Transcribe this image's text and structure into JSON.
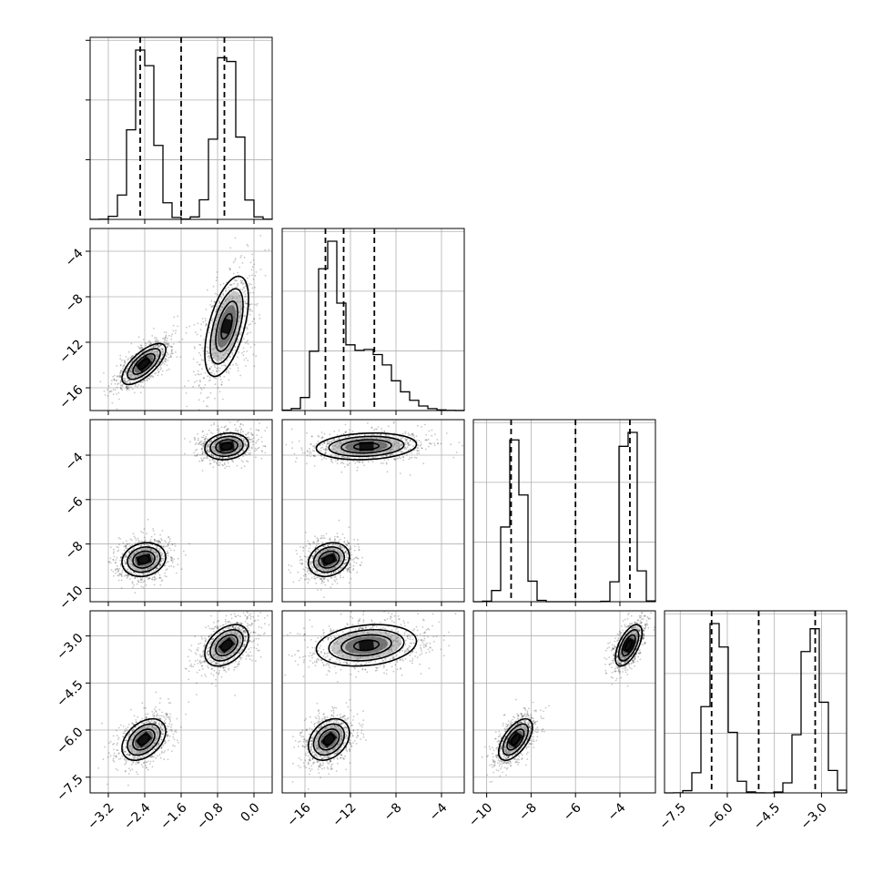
{
  "chart_data": {
    "type": "scatter",
    "kind": "corner-plot",
    "grid": true,
    "params": [
      {
        "range": [
          -3.6,
          0.4
        ],
        "ticks": [
          -3.2,
          -2.4,
          -1.6,
          -0.8,
          0.0
        ],
        "tick_labels": [
          "−3.2",
          "−2.4",
          "−1.6",
          "−0.8",
          "0.0"
        ],
        "modes": [
          {
            "mean": -2.42,
            "sd": 0.24,
            "w": 0.5
          },
          {
            "mean": -0.6,
            "sd": 0.24,
            "w": 0.5
          }
        ]
      },
      {
        "range": [
          -18.0,
          -2.0
        ],
        "ticks": [
          -16,
          -12,
          -8,
          -4
        ],
        "tick_labels": [
          "−16",
          "−12",
          "−8",
          "−4"
        ],
        "modes": [
          {
            "mean": -13.9,
            "sd": 0.9,
            "w": 0.5
          },
          {
            "mean": -10.6,
            "sd": 2.2,
            "w": 0.5
          }
        ]
      },
      {
        "range": [
          -10.6,
          -2.4
        ],
        "ticks": [
          -10,
          -8,
          -6,
          -4
        ],
        "tick_labels": [
          "−10",
          "−8",
          "−6",
          "−4"
        ],
        "modes": [
          {
            "mean": -8.7,
            "sd": 0.38,
            "w": 0.5
          },
          {
            "mean": -3.6,
            "sd": 0.3,
            "w": 0.5
          }
        ]
      },
      {
        "range": [
          -8.0,
          -2.2
        ],
        "ticks": [
          -7.5,
          -6.0,
          -4.5,
          -3.0
        ],
        "tick_labels": [
          "−7.5",
          "−6.0",
          "−4.5",
          "−3.0"
        ],
        "modes": [
          {
            "mean": -6.3,
            "sd": 0.33,
            "w": 0.5
          },
          {
            "mean": -3.3,
            "sd": 0.33,
            "w": 0.5
          }
        ]
      }
    ],
    "left_tick_labels": [
      null,
      {
        "ticks": [
          -16,
          -12,
          -8,
          -4
        ],
        "tick_labels": [
          "−16",
          "−12",
          "−8",
          "−4"
        ]
      },
      {
        "ticks": [
          -10,
          -8,
          -6,
          -4
        ],
        "tick_labels": [
          "−10",
          "−8",
          "−6",
          "−4"
        ]
      },
      {
        "ticks": [
          -7.5,
          -6.0,
          -4.5,
          -3.0
        ],
        "tick_labels": [
          "−7.5",
          "−6.0",
          "−4.5",
          "−3.0"
        ]
      }
    ],
    "quantiles": [
      [
        -2.5,
        -1.6,
        -0.65
      ],
      [
        -14.2,
        -12.6,
        -9.9
      ],
      [
        -8.9,
        -6.0,
        -3.55
      ],
      [
        -6.5,
        -5.0,
        -3.2
      ]
    ],
    "hist_max_freq": [
      0.1,
      0.1,
      0.1,
      0.1
    ],
    "pair_modes": [
      {
        "i": 1,
        "j": 0,
        "modes": [
          {
            "mx": -2.42,
            "my": -13.9,
            "sx": 0.24,
            "sy": 0.9,
            "rho": 0.7
          },
          {
            "mx": -0.6,
            "my": -10.6,
            "sx": 0.24,
            "sy": 2.2,
            "rho": 0.55
          }
        ]
      },
      {
        "i": 2,
        "j": 0,
        "modes": [
          {
            "mx": -2.42,
            "my": -8.7,
            "sx": 0.24,
            "sy": 0.38,
            "rho": 0.15
          },
          {
            "mx": -0.6,
            "my": -3.6,
            "sx": 0.24,
            "sy": 0.3,
            "rho": 0.15
          }
        ]
      },
      {
        "i": 2,
        "j": 1,
        "modes": [
          {
            "mx": -13.9,
            "my": -8.7,
            "sx": 0.9,
            "sy": 0.38,
            "rho": 0.2
          },
          {
            "mx": -10.6,
            "my": -3.6,
            "sx": 2.2,
            "sy": 0.3,
            "rho": 0.15
          }
        ]
      },
      {
        "i": 3,
        "j": 0,
        "modes": [
          {
            "mx": -2.42,
            "my": -6.3,
            "sx": 0.24,
            "sy": 0.33,
            "rho": 0.4
          },
          {
            "mx": -0.6,
            "my": -3.3,
            "sx": 0.24,
            "sy": 0.33,
            "rho": 0.4
          }
        ]
      },
      {
        "i": 3,
        "j": 1,
        "modes": [
          {
            "mx": -13.9,
            "my": -6.3,
            "sx": 0.9,
            "sy": 0.33,
            "rho": 0.3
          },
          {
            "mx": -10.6,
            "my": -3.3,
            "sx": 2.2,
            "sy": 0.33,
            "rho": 0.2
          }
        ]
      },
      {
        "i": 3,
        "j": 2,
        "modes": [
          {
            "mx": -8.7,
            "my": -6.3,
            "sx": 0.38,
            "sy": 0.33,
            "rho": 0.6
          },
          {
            "mx": -3.6,
            "my": -3.3,
            "sx": 0.3,
            "sy": 0.33,
            "rho": 0.6
          }
        ]
      }
    ],
    "colors": {
      "ink": "#000000",
      "grid": "#b0b0b0",
      "background": "#ffffff"
    }
  }
}
